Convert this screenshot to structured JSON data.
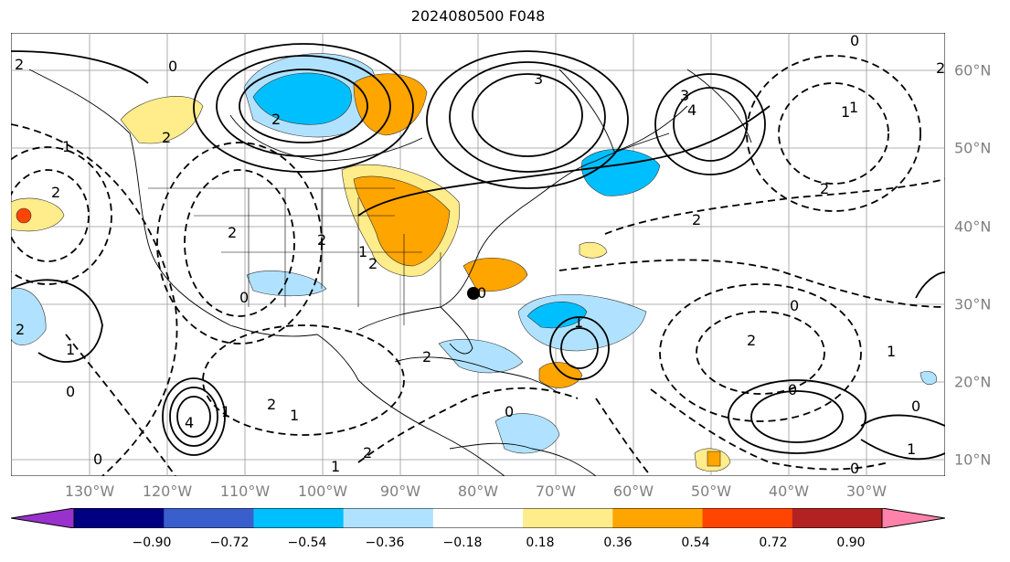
{
  "title": "2024080500 F048",
  "lon_labels": [
    "130°W",
    "120°W",
    "110°W",
    "100°W",
    "90°W",
    "80°W",
    "70°W",
    "60°W",
    "50°W",
    "40°W",
    "30°W"
  ],
  "lat_labels": [
    "60°N",
    "50°N",
    "40°N",
    "30°N",
    "20°N",
    "10°N"
  ],
  "colorbar": {
    "colors": [
      "#9932cc",
      "#000080",
      "#3a5fcd",
      "#00bfff",
      "#b0e2ff",
      "#ffffff",
      "#ffec8b",
      "#ffa500",
      "#ff4500",
      "#b22222",
      "#ff82ab"
    ],
    "ticks": [
      "−0.90",
      "−0.72",
      "−0.54",
      "−0.36",
      "−0.18",
      "0.18",
      "0.36",
      "0.54",
      "0.72",
      "0.90"
    ]
  },
  "contour_labels": [
    "2",
    "0",
    "2",
    "1",
    "2",
    "3",
    "4",
    "3",
    "2",
    "0",
    "2",
    "1",
    "2",
    "0",
    "2",
    "1",
    "2",
    "0",
    "1",
    "4",
    "2",
    "0",
    "1",
    "2",
    "0",
    "2",
    "1",
    "0",
    "1",
    "2",
    "0",
    "1",
    "0",
    "1",
    "2",
    "0",
    "1",
    "0",
    "2",
    "1",
    "2"
  ]
}
